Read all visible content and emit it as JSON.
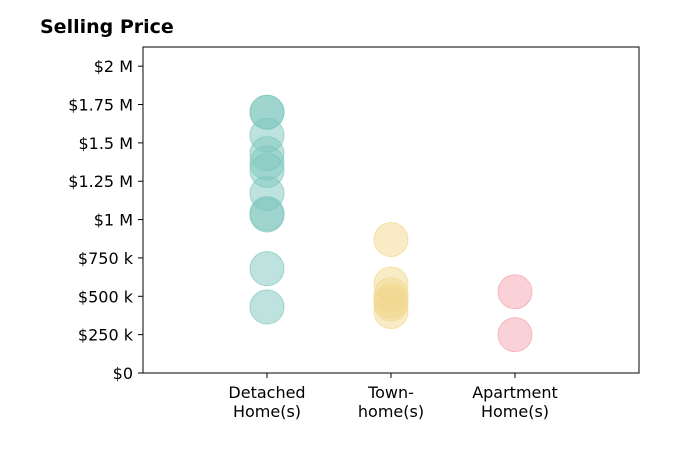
{
  "chart_data": {
    "type": "scatter",
    "title": "Selling Price",
    "xlabel": "",
    "ylabel": "",
    "ylim": [
      0,
      2125000
    ],
    "y_ticks": [
      0,
      250000,
      500000,
      750000,
      1000000,
      1250000,
      1500000,
      1750000,
      2000000
    ],
    "y_tick_labels": [
      "$0",
      "$250 k",
      "$500 k",
      "$750 k",
      "$1 M",
      "$1.25 M",
      "$1.5 M",
      "$1.75 M",
      "$2 M"
    ],
    "categories": [
      [
        "Detached",
        "Home(s)"
      ],
      [
        "Town-",
        "home(s)"
      ],
      [
        "Apartment",
        "Home(s)"
      ]
    ],
    "grid": false,
    "series": [
      {
        "color": "#7ec8be",
        "values": [
          1700000,
          1700000,
          1550000,
          1430000,
          1370000,
          1320000,
          1170000,
          1040000,
          1030000,
          680000,
          430000
        ]
      },
      {
        "color": "#f2d88e",
        "values": [
          870000,
          580000,
          510000,
          470000,
          450000,
          400000
        ]
      },
      {
        "color": "#f4a3ad",
        "values": [
          530000,
          250000
        ]
      }
    ]
  }
}
